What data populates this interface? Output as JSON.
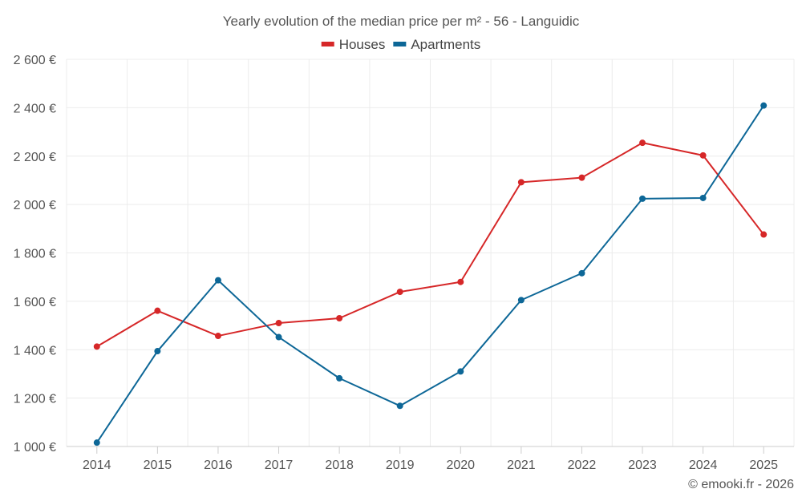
{
  "chart_data": {
    "type": "line",
    "title": "Yearly evolution of the median price per m² - 56 - Languidic",
    "categories": [
      "2014",
      "2015",
      "2016",
      "2017",
      "2018",
      "2019",
      "2020",
      "2021",
      "2022",
      "2023",
      "2024",
      "2025"
    ],
    "series": [
      {
        "name": "Houses",
        "color": "#d62728",
        "values": [
          1413,
          1561,
          1457,
          1510,
          1530,
          1639,
          1680,
          2092,
          2111,
          2255,
          2203,
          1876
        ]
      },
      {
        "name": "Apartments",
        "color": "#0d6797",
        "values": [
          1016,
          1394,
          1687,
          1452,
          1282,
          1168,
          1310,
          1605,
          1716,
          2024,
          2027,
          2409
        ]
      }
    ],
    "ylim": [
      1000,
      2600
    ],
    "yticks": [
      1000,
      1200,
      1400,
      1600,
      1800,
      2000,
      2200,
      2400,
      2600
    ],
    "ytick_labels": [
      "1 000 €",
      "1 200 €",
      "1 400 €",
      "1 600 €",
      "1 800 €",
      "2 000 €",
      "2 200 €",
      "2 400 €",
      "2 600 €"
    ],
    "xlabel": "",
    "ylabel": "",
    "legend": "top-center",
    "grid": true
  },
  "credit": "© emooki.fr - 2026"
}
